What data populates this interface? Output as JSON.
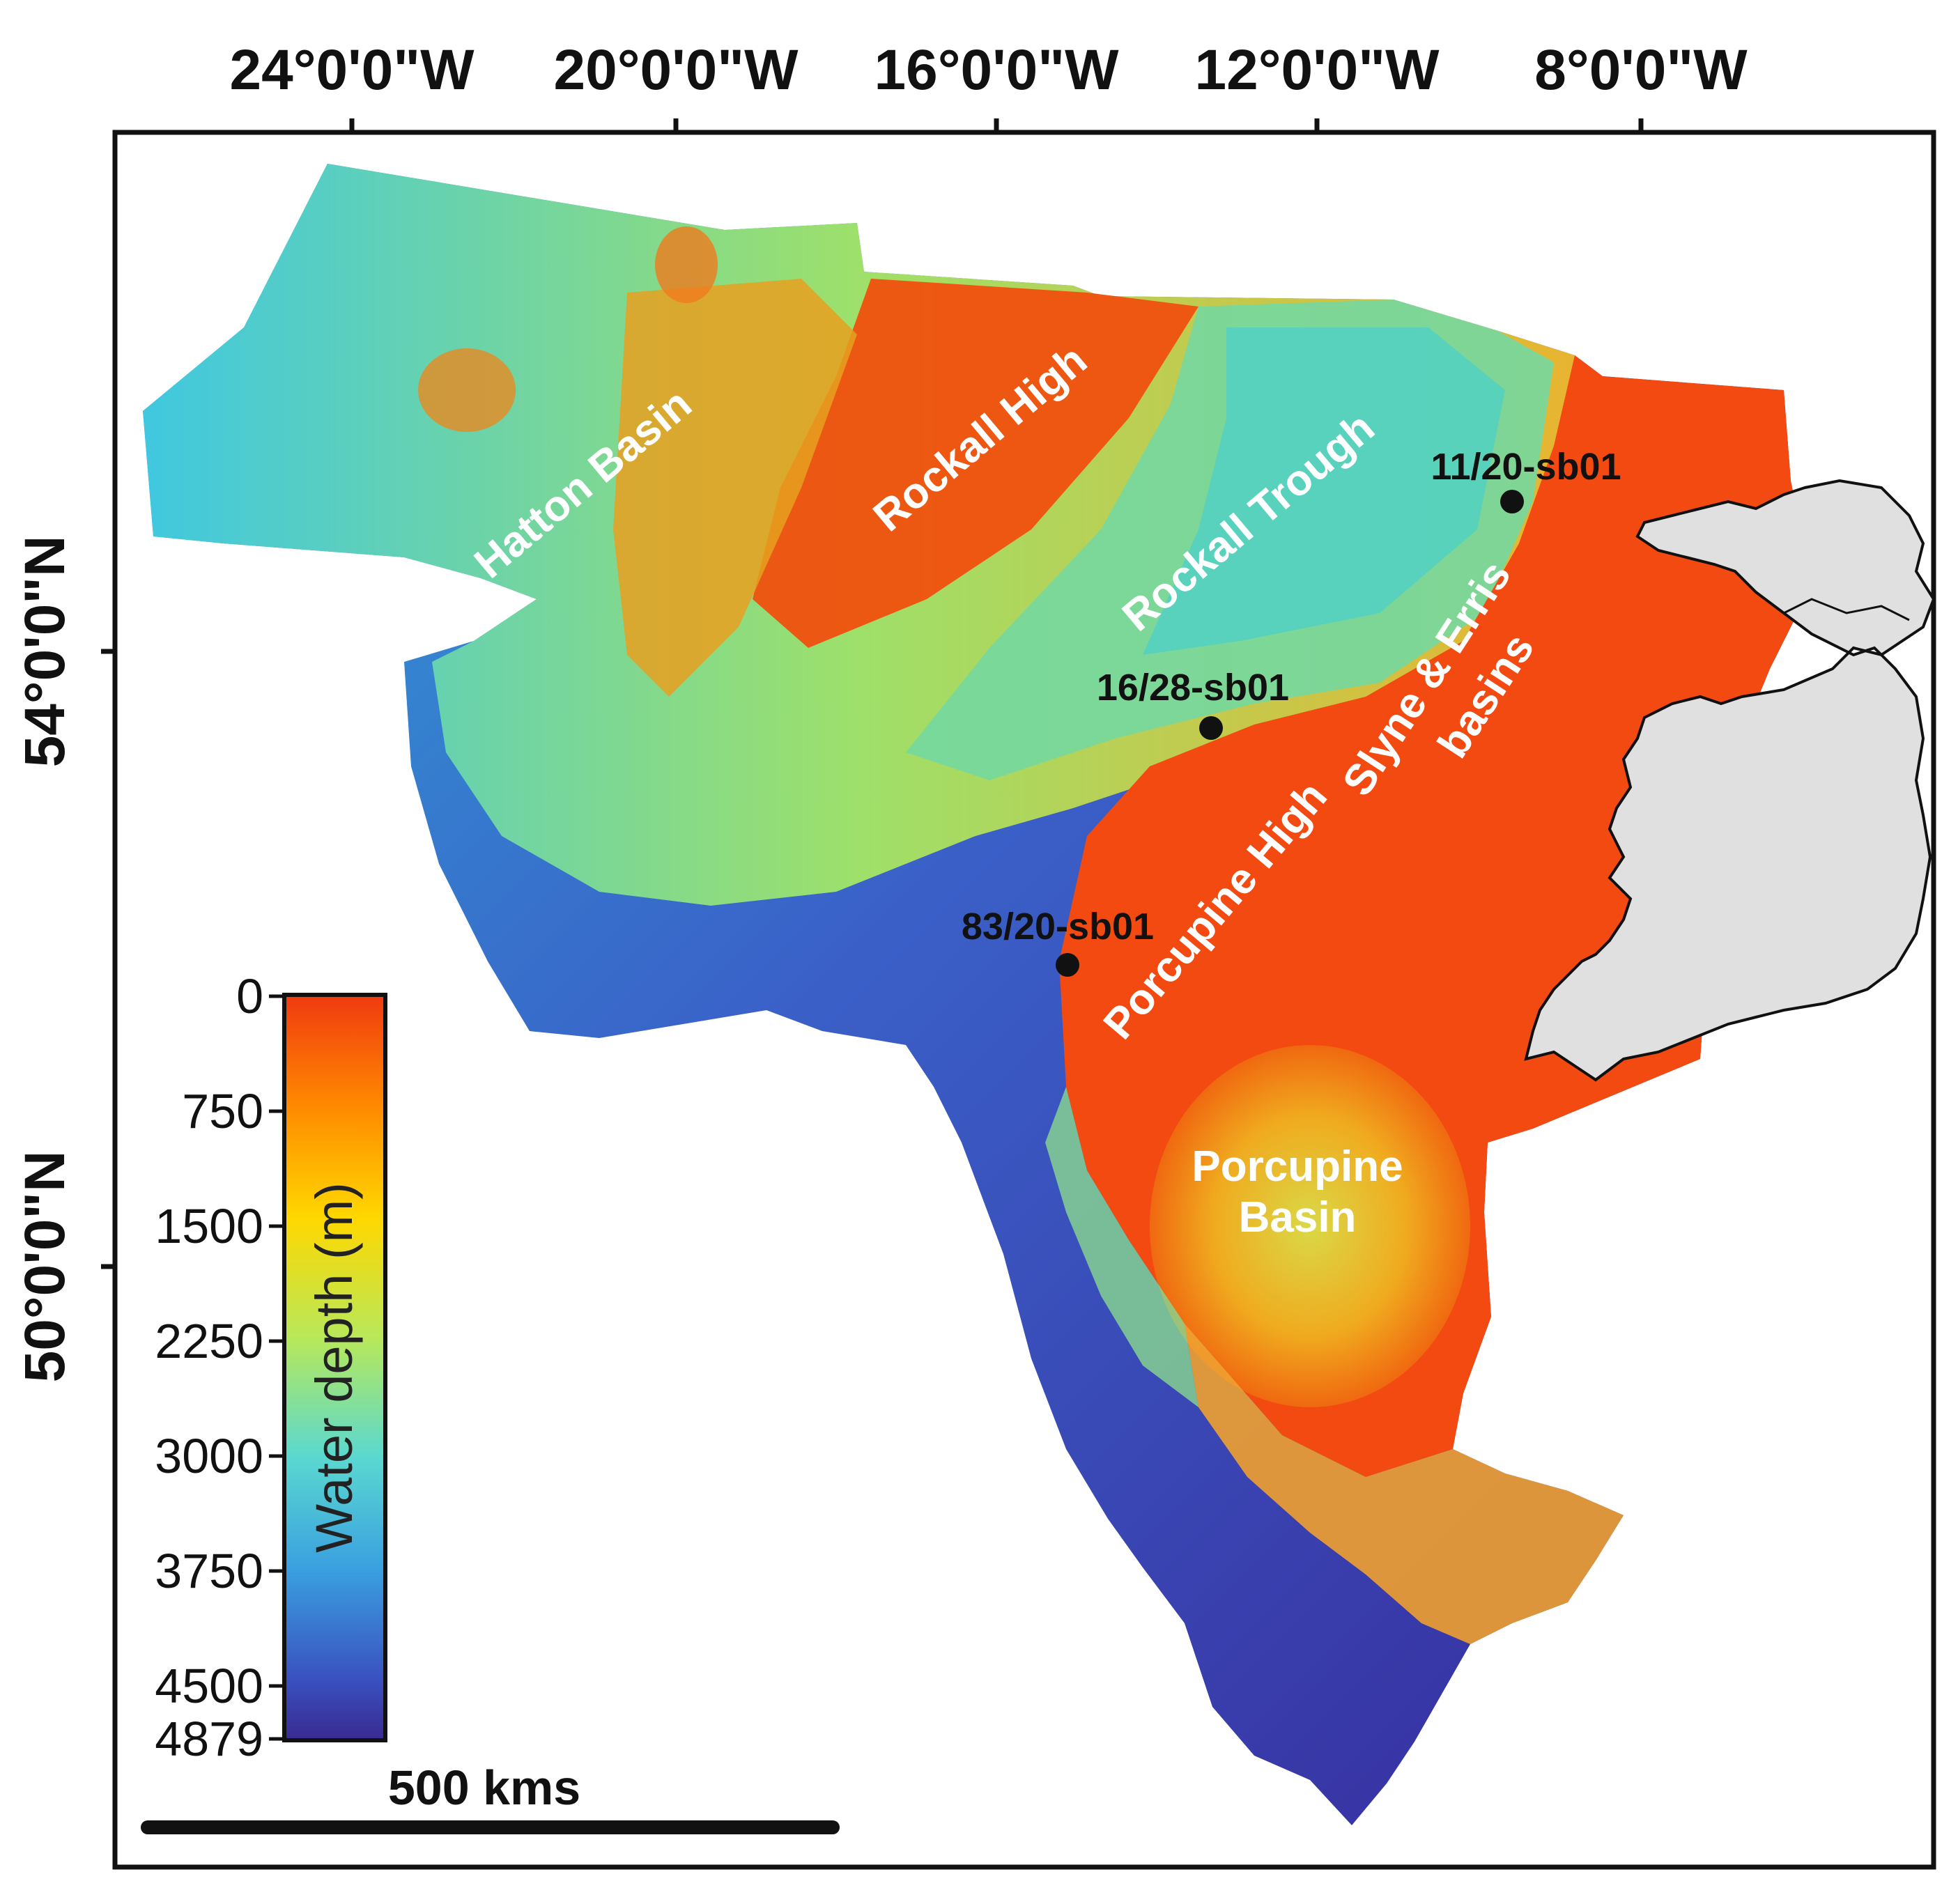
{
  "map": {
    "longitude_labels": [
      "24°0'0\"W",
      "20°0'0\"W",
      "16°0'0\"W",
      "12°0'0\"W",
      "8°0'0\"W"
    ],
    "latitude_labels": [
      "54°0'0\"N",
      "50°0'0\"N"
    ],
    "regions": {
      "hatton_basin": "Hatton Basin",
      "rockall_high": "Rockall High",
      "rockall_trough": "Rockall Trough",
      "slyne_erris_line1": "Slyne & Erris",
      "slyne_erris_line2": "basins",
      "porcupine_high": "Porcupine High",
      "porcupine_basin_line1": "Porcupine",
      "porcupine_basin_line2": "Basin"
    },
    "wells": [
      "11/20-sb01",
      "16/28-sb01",
      "83/20-sb01"
    ],
    "colorbar": {
      "title": "Water depth (m)",
      "ticks": [
        "0",
        "750",
        "1500",
        "2250",
        "3000",
        "3750",
        "4500",
        "4879"
      ],
      "min": 0,
      "max": 4879,
      "colors": [
        "#f03a10",
        "#ff8a00",
        "#ffd800",
        "#b8e85a",
        "#5ad8d0",
        "#3aa0e0",
        "#3a50c0",
        "#3a2a90"
      ]
    },
    "scale_bar": "500 kms",
    "land_color": "#e0e0e0"
  }
}
